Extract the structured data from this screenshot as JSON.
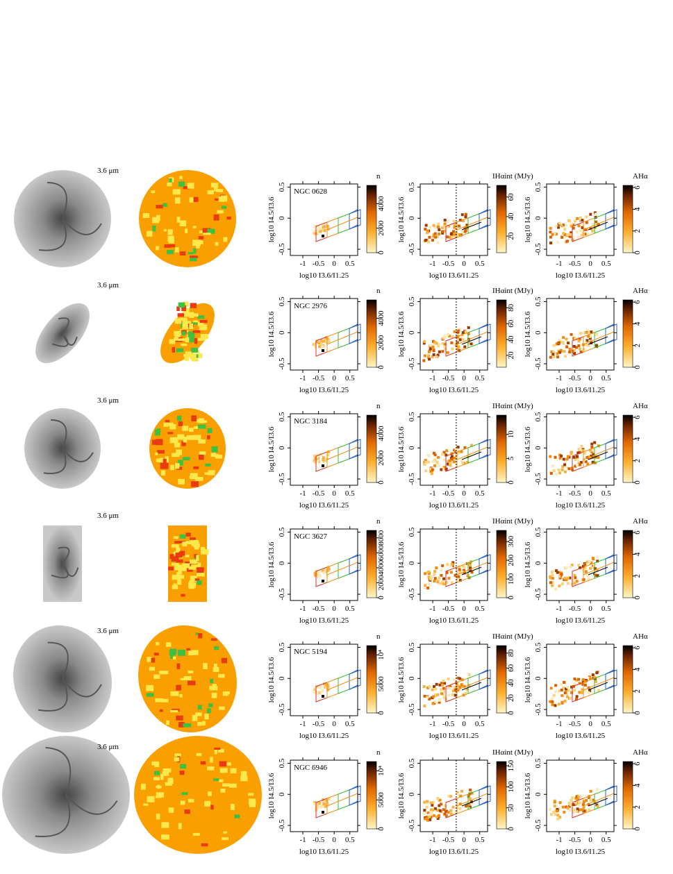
{
  "axes": {
    "xlim": [
      -1.4,
      0.75
    ],
    "ylim": [
      -0.6,
      0.55
    ],
    "xticks": [
      -1,
      -0.5,
      0,
      0.5
    ],
    "yticks": [
      -0.5,
      0,
      0.5
    ],
    "xlabel": "log10 I3.6/I1.25",
    "ylabel": "log10 I4.5/I3.6",
    "cut_x": -0.25
  },
  "colorbars": {
    "n": "n",
    "i": "IHαint (MJy)",
    "a": "AHα"
  },
  "rows": [
    {
      "band": "3.6 μm",
      "galaxy": "NGC 0628",
      "n_lim": [
        0,
        5500
      ],
      "n_ticks": [
        0,
        2000,
        4000
      ],
      "i_lim": [
        3,
        72
      ],
      "i_ticks": [
        20,
        40,
        60
      ],
      "a_lim": [
        0,
        6.2
      ],
      "a_ticks": [
        0,
        2,
        4,
        6
      ]
    },
    {
      "band": "3.6 μm",
      "galaxy": "NGC 2976",
      "n_lim": [
        0,
        5500
      ],
      "n_ticks": [
        0,
        2000,
        4000
      ],
      "i_lim": [
        5,
        90
      ],
      "i_ticks": [
        20,
        40,
        60,
        80
      ],
      "a_lim": [
        0,
        6.2
      ],
      "a_ticks": [
        0,
        2,
        4,
        6
      ]
    },
    {
      "band": "3.6 μm",
      "galaxy": "NGC 3184",
      "n_lim": [
        0,
        5500
      ],
      "n_ticks": [
        0,
        2000,
        4000
      ],
      "i_lim": [
        0,
        14
      ],
      "i_ticks": [
        0,
        5,
        10
      ],
      "a_lim": [
        0,
        6.2
      ],
      "a_ticks": [
        0,
        2,
        4,
        6
      ]
    },
    {
      "band": "3.6 μm",
      "galaxy": "NGC 3627",
      "n_lim": [
        0,
        9000
      ],
      "n_ticks": [
        0,
        2000,
        4000,
        6000,
        8000
      ],
      "i_lim": [
        0,
        360
      ],
      "i_ticks": [
        0,
        100,
        200,
        300
      ],
      "a_lim": [
        0,
        6.2
      ],
      "a_ticks": [
        0,
        2,
        4,
        6
      ]
    },
    {
      "band": "3.6 μm",
      "galaxy": "NGC 5194",
      "n_lim": [
        0,
        11600
      ],
      "n_ticks": [
        0,
        5000,
        {
          "value": 10000,
          "label": "10⁴"
        }
      ],
      "i_lim": [
        0,
        90
      ],
      "i_ticks": [
        0,
        20,
        40,
        60,
        80
      ],
      "a_lim": [
        0,
        6.2
      ],
      "a_ticks": [
        0,
        2,
        4,
        6
      ]
    },
    {
      "band": "3.6 μm",
      "galaxy": "NGC 6946",
      "n_lim": [
        0,
        11600
      ],
      "n_ticks": [
        0,
        5000,
        {
          "value": 10000,
          "label": "10⁴"
        }
      ],
      "i_lim": [
        0,
        160
      ],
      "i_ticks": [
        0,
        50,
        100,
        150
      ],
      "a_lim": [
        0,
        6.2
      ],
      "a_ticks": [
        0,
        2,
        4,
        6
      ]
    }
  ]
}
